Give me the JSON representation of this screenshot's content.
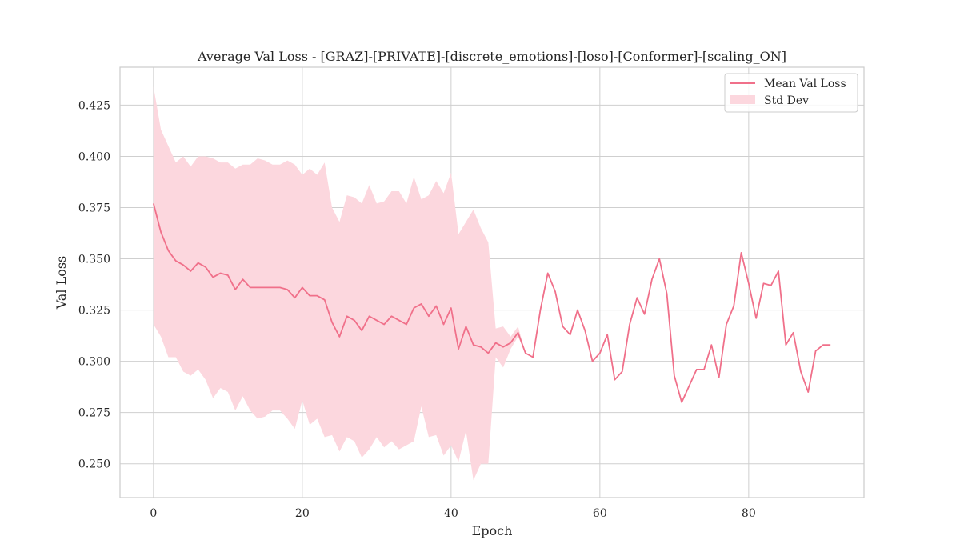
{
  "chart_data": {
    "type": "line",
    "title": "Average Val Loss - [GRAZ]-[PRIVATE]-[discrete_emotions]-[loso]-[Conformer]-[scaling_ON]",
    "xlabel": "Epoch",
    "ylabel": "Val Loss",
    "xlim": [
      -4.5,
      95.5
    ],
    "ylim": [
      0.2335,
      0.4435
    ],
    "xticks": [
      0,
      20,
      40,
      60,
      80
    ],
    "yticks": [
      0.25,
      0.275,
      0.3,
      0.325,
      0.35,
      0.375,
      0.4,
      0.425
    ],
    "grid": true,
    "legend_position": "top-right",
    "legend": {
      "mean_label": "Mean Val Loss",
      "std_label": "Std Dev"
    },
    "colors": {
      "line": "#f0708a",
      "band": "#fcd7de",
      "grid": "#cfcfcf",
      "axes": "#cccccc"
    },
    "series": [
      {
        "name": "Mean Val Loss",
        "x": [
          0,
          1,
          2,
          3,
          4,
          5,
          6,
          7,
          8,
          9,
          10,
          11,
          12,
          13,
          14,
          15,
          16,
          17,
          18,
          19,
          20,
          21,
          22,
          23,
          24,
          25,
          26,
          27,
          28,
          29,
          30,
          31,
          32,
          33,
          34,
          35,
          36,
          37,
          38,
          39,
          40,
          41,
          42,
          43,
          44,
          45,
          46,
          47,
          48,
          49,
          50,
          51,
          52,
          53,
          54,
          55,
          56,
          57,
          58,
          59,
          60,
          61,
          62,
          63,
          64,
          65,
          66,
          67,
          68,
          69,
          70,
          71,
          72,
          73,
          74,
          75,
          76,
          77,
          78,
          79,
          80,
          81,
          82,
          83,
          84,
          85,
          86,
          87,
          88,
          89,
          90,
          91
        ],
        "values": [
          0.377,
          0.363,
          0.354,
          0.349,
          0.347,
          0.344,
          0.348,
          0.346,
          0.341,
          0.343,
          0.342,
          0.335,
          0.34,
          0.336,
          0.336,
          0.336,
          0.336,
          0.336,
          0.335,
          0.331,
          0.336,
          0.332,
          0.332,
          0.33,
          0.319,
          0.312,
          0.322,
          0.32,
          0.315,
          0.322,
          0.32,
          0.318,
          0.322,
          0.32,
          0.318,
          0.326,
          0.328,
          0.322,
          0.327,
          0.318,
          0.326,
          0.306,
          0.317,
          0.308,
          0.307,
          0.304,
          0.309,
          0.307,
          0.309,
          0.314,
          0.304,
          0.302,
          0.325,
          0.343,
          0.334,
          0.317,
          0.313,
          0.325,
          0.315,
          0.3,
          0.304,
          0.313,
          0.291,
          0.295,
          0.318,
          0.331,
          0.323,
          0.34,
          0.35,
          0.333,
          0.293,
          0.28,
          0.288,
          0.296,
          0.296,
          0.308,
          0.292,
          0.318,
          0.327,
          0.353,
          0.338,
          0.321,
          0.338,
          0.337,
          0.344,
          0.308,
          0.314,
          0.295,
          0.285,
          0.305,
          0.308,
          0.308
        ]
      },
      {
        "name": "Std Dev",
        "x": [
          0,
          1,
          2,
          3,
          4,
          5,
          6,
          7,
          8,
          9,
          10,
          11,
          12,
          13,
          14,
          15,
          16,
          17,
          18,
          19,
          20,
          21,
          22,
          23,
          24,
          25,
          26,
          27,
          28,
          29,
          30,
          31,
          32,
          33,
          34,
          35,
          36,
          37,
          38,
          39,
          40,
          41,
          42,
          43,
          44,
          45,
          46,
          47,
          48,
          49,
          50
        ],
        "upper": [
          0.434,
          0.413,
          0.405,
          0.397,
          0.4,
          0.395,
          0.4,
          0.4,
          0.399,
          0.397,
          0.397,
          0.394,
          0.396,
          0.396,
          0.399,
          0.398,
          0.396,
          0.396,
          0.398,
          0.396,
          0.391,
          0.394,
          0.391,
          0.397,
          0.375,
          0.368,
          0.381,
          0.38,
          0.377,
          0.386,
          0.377,
          0.378,
          0.383,
          0.383,
          0.377,
          0.39,
          0.379,
          0.381,
          0.388,
          0.382,
          0.392,
          0.362,
          0.368,
          0.374,
          0.365,
          0.358,
          0.316,
          0.317,
          0.312,
          0.317,
          0.304
        ],
        "lower": [
          0.318,
          0.312,
          0.302,
          0.302,
          0.295,
          0.293,
          0.296,
          0.291,
          0.282,
          0.287,
          0.285,
          0.276,
          0.283,
          0.276,
          0.272,
          0.273,
          0.276,
          0.276,
          0.272,
          0.267,
          0.281,
          0.269,
          0.272,
          0.263,
          0.264,
          0.256,
          0.263,
          0.261,
          0.253,
          0.257,
          0.263,
          0.258,
          0.261,
          0.257,
          0.259,
          0.261,
          0.278,
          0.263,
          0.264,
          0.254,
          0.259,
          0.251,
          0.266,
          0.242,
          0.25,
          0.25,
          0.302,
          0.297,
          0.306,
          0.312,
          0.304
        ]
      }
    ]
  }
}
